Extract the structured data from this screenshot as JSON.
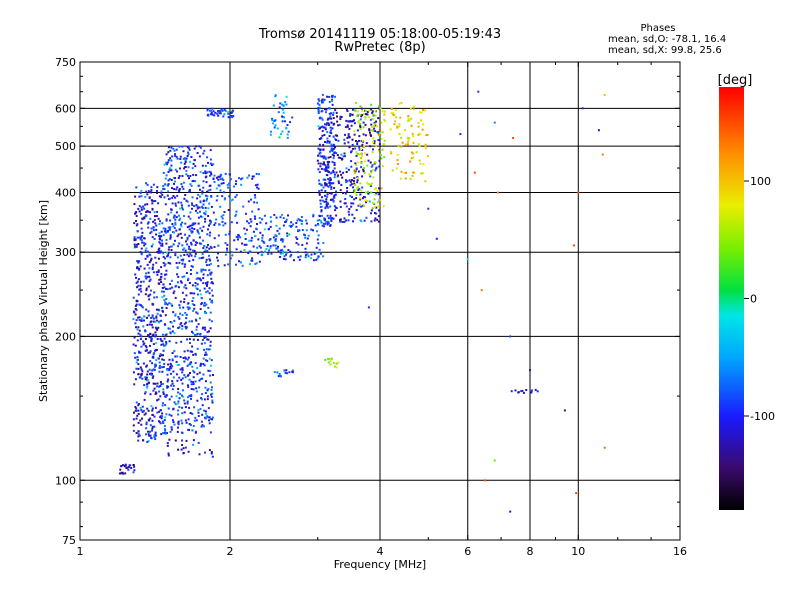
{
  "figure": {
    "title_line1": "Tromsø 20141119 05:18:00-05:19:43",
    "title_line2": "RwPretec (8p)",
    "phases_title": "Phases",
    "phases_o": "mean, sd,O: -78.1, 16.4",
    "phases_x": "mean, sd,X:  99.8, 25.6",
    "colorbar_label": "[deg]",
    "colorbar_ticks": [
      "100",
      "0",
      "-100"
    ]
  },
  "chart_data": {
    "type": "scatter",
    "title": "Tromsø 20141119 05:18:00-05:19:43",
    "subtitle": "RwPretec (8p)",
    "xlabel": "Frequency [MHz]",
    "ylabel": "Stationary phase Virtual Height [km]",
    "x_scale": "log",
    "y_scale": "log",
    "xlim": [
      1,
      16
    ],
    "ylim": [
      75,
      750
    ],
    "x_ticks": [
      1,
      2,
      4,
      6,
      8,
      10,
      16
    ],
    "x_tick_labels": [
      "1",
      "2",
      "4",
      "6",
      "8",
      "10",
      "16"
    ],
    "y_ticks": [
      75,
      100,
      200,
      300,
      400,
      500,
      600,
      750
    ],
    "y_tick_labels": [
      "75",
      "100",
      "200",
      "300",
      "400",
      "500",
      "600",
      "750"
    ],
    "x_gridlines": [
      2,
      4,
      6,
      8,
      10
    ],
    "y_gridlines": [
      100,
      200,
      300,
      400,
      500,
      600
    ],
    "grid": true,
    "colorbar": {
      "label": "[deg]",
      "range": [
        -180,
        180
      ],
      "ticks": [
        100,
        0,
        -100
      ],
      "colormap": "rainbow"
    },
    "point_groups": [
      {
        "f": [
          1.28,
          1.46
        ],
        "h": [
          120,
          420
        ],
        "phase": -110,
        "n": 520
      },
      {
        "f": [
          1.46,
          1.85
        ],
        "h": [
          125,
          500
        ],
        "phase": -95,
        "n": 900
      },
      {
        "f": [
          1.85,
          2.3
        ],
        "h": [
          280,
          440
        ],
        "phase": -90,
        "n": 160
      },
      {
        "f": [
          2.3,
          3.1
        ],
        "h": [
          288,
          360
        ],
        "phase": -85,
        "n": 150
      },
      {
        "f": [
          3.0,
          3.25
        ],
        "h": [
          340,
          640
        ],
        "phase": -100,
        "n": 260
      },
      {
        "f": [
          3.25,
          4.0
        ],
        "h": [
          345,
          600
        ],
        "phase": -115,
        "n": 260
      },
      {
        "f": [
          3.55,
          4.1
        ],
        "h": [
          370,
          620
        ],
        "phase": 60,
        "n": 120
      },
      {
        "f": [
          4.2,
          5.0
        ],
        "h": [
          420,
          620
        ],
        "phase": 90,
        "n": 90
      },
      {
        "f": [
          1.8,
          2.05
        ],
        "h": [
          575,
          600
        ],
        "phase": -80,
        "n": 40
      },
      {
        "f": [
          2.4,
          2.7
        ],
        "h": [
          520,
          640
        ],
        "phase": -70,
        "n": 40
      },
      {
        "f": [
          1.2,
          1.3
        ],
        "h": [
          103,
          108
        ],
        "phase": -125,
        "n": 25
      },
      {
        "f": [
          1.5,
          1.85
        ],
        "h": [
          112,
          122
        ],
        "phase": -120,
        "n": 25
      },
      {
        "f": [
          2.45,
          2.7
        ],
        "h": [
          165,
          170
        ],
        "phase": -95,
        "n": 15
      },
      {
        "f": [
          3.1,
          3.3
        ],
        "h": [
          172,
          180
        ],
        "phase": 50,
        "n": 12
      },
      {
        "f": [
          7.3,
          8.3
        ],
        "h": [
          152,
          155
        ],
        "phase": -115,
        "n": 12
      }
    ],
    "scattered_points": [
      {
        "f": 6.3,
        "h": 650,
        "phase": -90
      },
      {
        "f": 6.8,
        "h": 560,
        "phase": -60
      },
      {
        "f": 7.4,
        "h": 520,
        "phase": 150
      },
      {
        "f": 6.2,
        "h": 440,
        "phase": 150
      },
      {
        "f": 6.9,
        "h": 400,
        "phase": 130
      },
      {
        "f": 10.0,
        "h": 400,
        "phase": 140
      },
      {
        "f": 11.2,
        "h": 480,
        "phase": 130
      },
      {
        "f": 9.8,
        "h": 310,
        "phase": 150
      },
      {
        "f": 5.2,
        "h": 320,
        "phase": -100
      },
      {
        "f": 6.0,
        "h": 290,
        "phase": -20
      },
      {
        "f": 6.4,
        "h": 250,
        "phase": 130
      },
      {
        "f": 7.3,
        "h": 200,
        "phase": -90
      },
      {
        "f": 8.0,
        "h": 170,
        "phase": -120
      },
      {
        "f": 9.4,
        "h": 140,
        "phase": -120
      },
      {
        "f": 11.3,
        "h": 117,
        "phase": 140
      },
      {
        "f": 6.8,
        "h": 110,
        "phase": 40
      },
      {
        "f": 7.3,
        "h": 86,
        "phase": -100
      },
      {
        "f": 6.5,
        "h": 100,
        "phase": 150
      },
      {
        "f": 10.2,
        "h": 600,
        "phase": -100
      },
      {
        "f": 11.3,
        "h": 640,
        "phase": 100
      },
      {
        "f": 5.0,
        "h": 370,
        "phase": -90
      },
      {
        "f": 9.9,
        "h": 94,
        "phase": 150
      },
      {
        "f": 5.8,
        "h": 530,
        "phase": -95
      },
      {
        "f": 11.0,
        "h": 540,
        "phase": -120
      },
      {
        "f": 3.8,
        "h": 230,
        "phase": -95
      },
      {
        "f": 2.2,
        "h": 340,
        "phase": -105
      }
    ]
  }
}
